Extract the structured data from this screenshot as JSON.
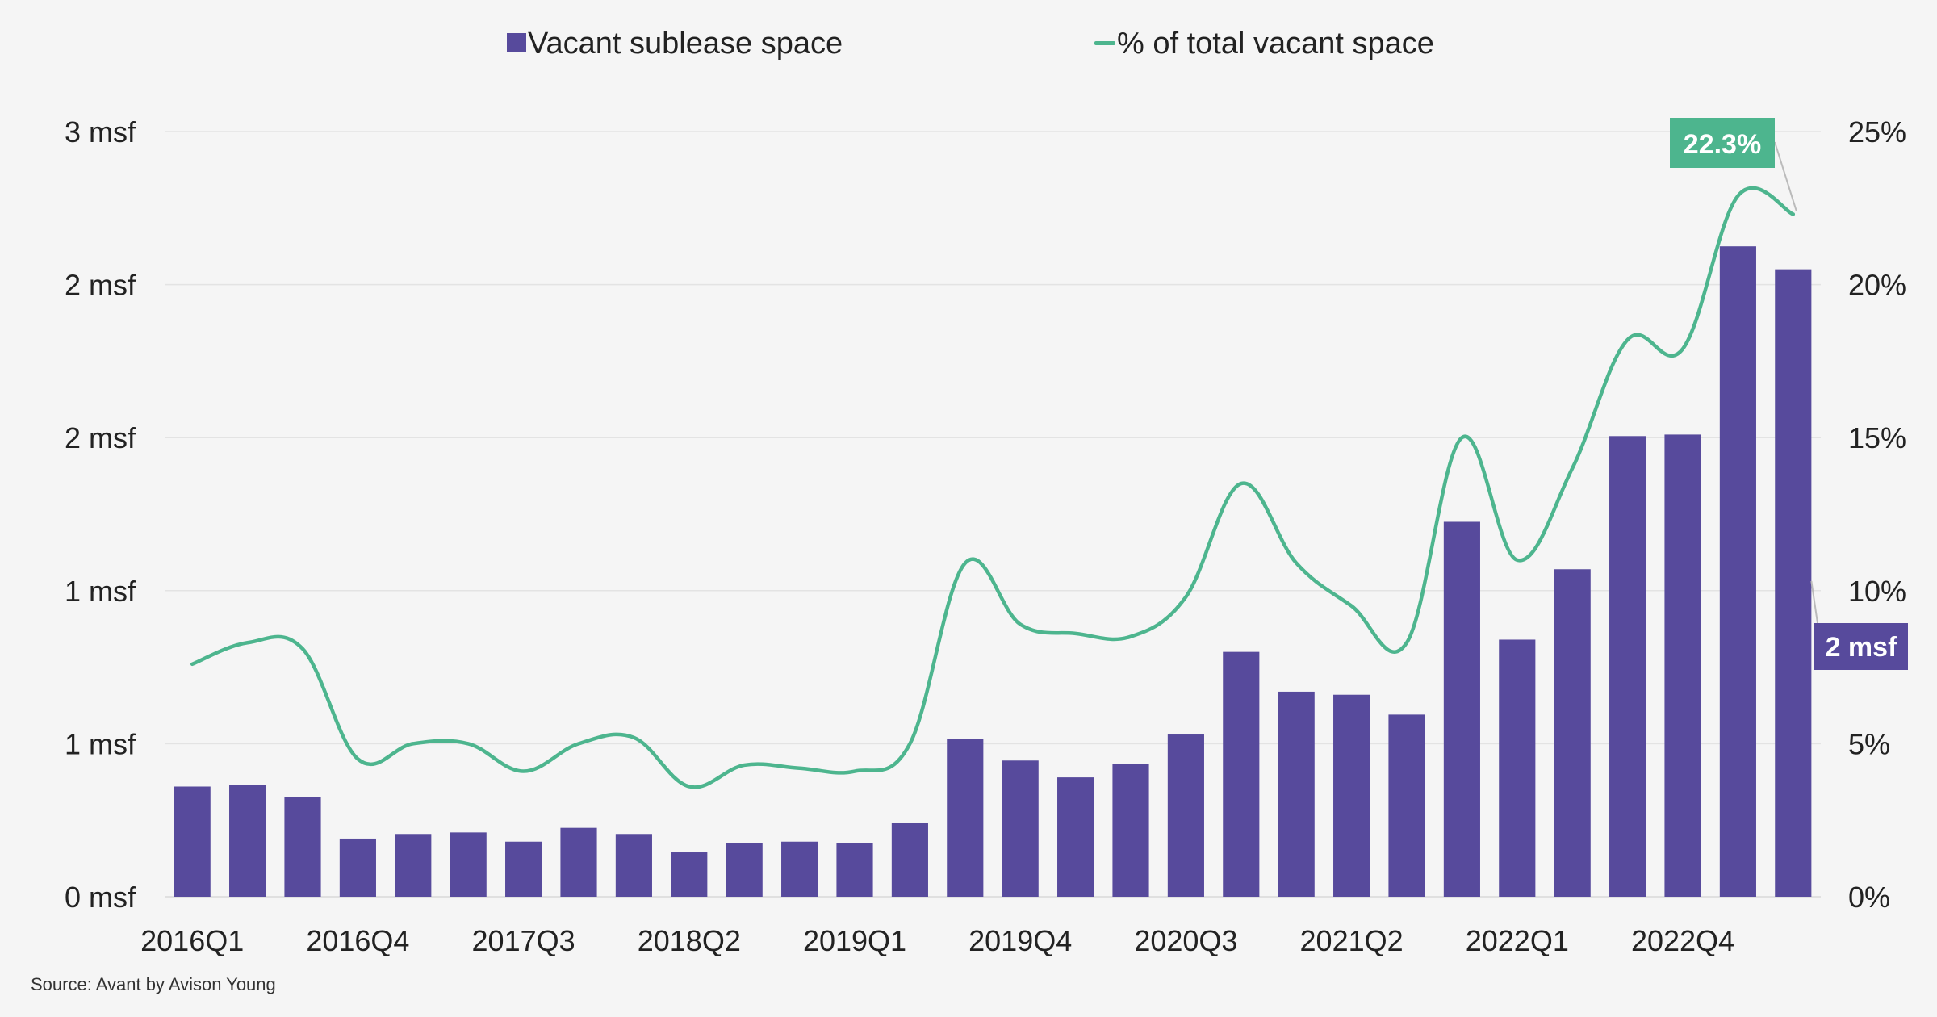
{
  "chart_data": {
    "type": "bar",
    "categories": [
      "2016Q1",
      "2016Q2",
      "2016Q3",
      "2016Q4",
      "2017Q1",
      "2017Q2",
      "2017Q3",
      "2017Q4",
      "2018Q1",
      "2018Q2",
      "2018Q3",
      "2018Q4",
      "2019Q1",
      "2019Q2",
      "2019Q3",
      "2019Q4",
      "2020Q1",
      "2020Q2",
      "2020Q3",
      "2020Q4",
      "2021Q1",
      "2021Q2",
      "2021Q3",
      "2021Q4",
      "2022Q1",
      "2022Q2",
      "2022Q3",
      "2022Q4",
      "2023Q1",
      "2023Q2"
    ],
    "x_tick_labels": [
      "2016Q1",
      "2016Q4",
      "2017Q3",
      "2018Q2",
      "2019Q1",
      "2019Q4",
      "2020Q3",
      "2021Q2",
      "2022Q1",
      "2022Q4"
    ],
    "series": [
      {
        "name": "Vacant sublease space",
        "type": "bar",
        "axis": "left",
        "color": "#574a9c",
        "values": [
          0.36,
          0.365,
          0.325,
          0.19,
          0.205,
          0.21,
          0.18,
          0.225,
          0.205,
          0.145,
          0.175,
          0.18,
          0.175,
          0.24,
          0.515,
          0.445,
          0.39,
          0.435,
          0.53,
          0.8,
          0.67,
          0.66,
          0.595,
          1.225,
          0.84,
          1.07,
          1.505,
          1.51,
          2.125,
          2.05
        ]
      },
      {
        "name": "% of total vacant space",
        "type": "line",
        "axis": "right",
        "color": "#4db58e",
        "values": [
          7.6,
          8.3,
          8.1,
          4.5,
          5.0,
          5.0,
          4.1,
          5.0,
          5.2,
          3.6,
          4.3,
          4.2,
          4.1,
          5.0,
          10.9,
          8.9,
          8.6,
          8.5,
          9.8,
          13.5,
          10.9,
          9.5,
          8.3,
          15.0,
          11.0,
          14.0,
          18.2,
          17.9,
          22.9,
          22.3
        ]
      }
    ],
    "left_axis": {
      "ticks": [
        "0 msf",
        "1 msf",
        "1 msf",
        "2 msf",
        "2 msf",
        "3 msf"
      ],
      "ylim": [
        0,
        2.5
      ]
    },
    "right_axis": {
      "ticks": [
        "0%",
        "5%",
        "10%",
        "15%",
        "20%",
        "25%"
      ],
      "ylim": [
        0,
        25
      ]
    },
    "annotations": [
      {
        "text": "22.3%",
        "series": "% of total vacant space",
        "index": 29,
        "color": "#4db58e"
      },
      {
        "text": "2 msf",
        "series": "Vacant sublease space",
        "index": 29,
        "color": "#574a9c"
      }
    ],
    "legend": {
      "position": "top"
    },
    "grid": true,
    "source": "Source: Avant by Avison Young"
  }
}
